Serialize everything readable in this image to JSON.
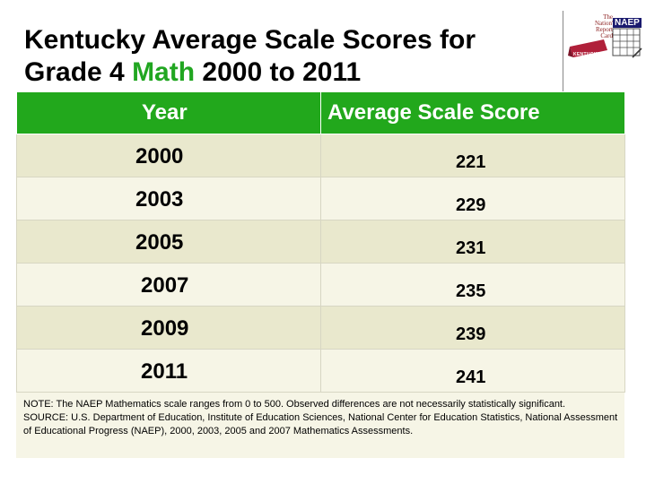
{
  "title": {
    "line1": "Kentucky Average Scale Scores for",
    "line2_prefix": "Grade 4 ",
    "line2_subject": "Math",
    "line2_suffix": " 2000 to 2011"
  },
  "colors": {
    "header_green": "#22a81c",
    "subject_green": "#21a621",
    "row_odd": "#e9e8cd",
    "row_even": "#f6f5e6"
  },
  "logo": {
    "line1": "The",
    "line2": "Nation's",
    "line3": "Report",
    "line4": "Card",
    "badge": "NAEP",
    "state": "KENTUCKY"
  },
  "table": {
    "headers": {
      "year": "Year",
      "score": "Average Scale Score"
    },
    "rows": [
      {
        "year": "2000",
        "score": "221"
      },
      {
        "year": "2003",
        "score": "229"
      },
      {
        "year": "2005",
        "score": "231"
      },
      {
        "year": "2007",
        "score": "235"
      },
      {
        "year": "2009",
        "score": "239"
      },
      {
        "year": "2011",
        "score": "241"
      }
    ]
  },
  "notes": {
    "note": "NOTE: The NAEP Mathematics scale ranges from 0 to 500. Observed differences are not necessarily statistically significant.",
    "source": "SOURCE: U.S. Department of Education, Institute of Education Sciences, National Center for Education Statistics, National Assessment of Educational Progress (NAEP), 2000, 2003, 2005 and 2007 Mathematics Assessments."
  }
}
